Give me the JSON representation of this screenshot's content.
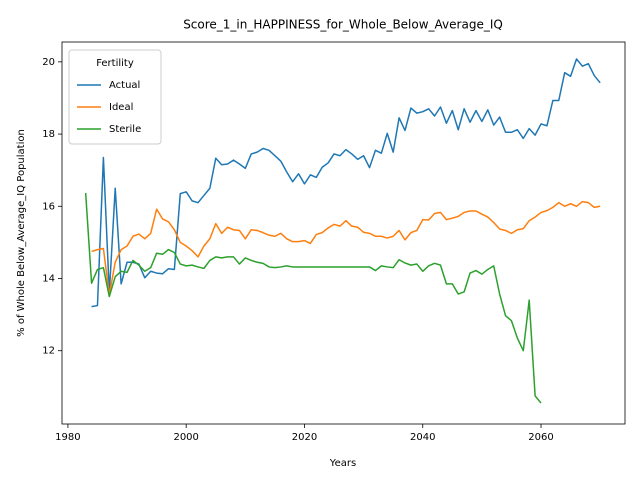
{
  "chart_data": {
    "type": "line",
    "title": "Score_1_in_HAPPINESS_for_Whole_Below_Average_IQ",
    "x_label": "Years",
    "y_label": "% of Whole Below_Average_IQ Population",
    "legend_title": "Fertility",
    "legend_position": "upper left",
    "grid": false,
    "x": [
      1983,
      1984,
      1985,
      1986,
      1987,
      1988,
      1989,
      1990,
      1991,
      1992,
      1993,
      1994,
      1995,
      1996,
      1997,
      1998,
      1999,
      2000,
      2001,
      2002,
      2003,
      2004,
      2005,
      2006,
      2007,
      2008,
      2009,
      2010,
      2011,
      2012,
      2013,
      2014,
      2015,
      2016,
      2017,
      2018,
      2019,
      2020,
      2021,
      2022,
      2023,
      2024,
      2025,
      2026,
      2027,
      2028,
      2029,
      2030,
      2031,
      2032,
      2033,
      2034,
      2035,
      2036,
      2037,
      2038,
      2039,
      2040,
      2041,
      2042,
      2043,
      2044,
      2045,
      2046,
      2047,
      2048,
      2049,
      2050,
      2051,
      2052,
      2053,
      2054,
      2055,
      2056,
      2057,
      2058,
      2059,
      2060,
      2061,
      2062,
      2063,
      2064,
      2065,
      2066,
      2067,
      2068,
      2069,
      2070
    ],
    "series": [
      {
        "name": "Actual",
        "color": "#1f77b4",
        "values": [
          null,
          13.22,
          13.25,
          17.35,
          13.6,
          16.5,
          13.85,
          14.45,
          14.45,
          14.4,
          14.02,
          14.2,
          14.15,
          14.13,
          14.27,
          14.25,
          16.35,
          16.4,
          16.15,
          16.1,
          16.3,
          16.5,
          17.33,
          17.15,
          17.17,
          17.28,
          17.17,
          17.05,
          17.45,
          17.5,
          17.6,
          17.55,
          17.4,
          17.25,
          16.95,
          16.68,
          16.9,
          16.62,
          16.87,
          16.8,
          17.08,
          17.2,
          17.45,
          17.4,
          17.57,
          17.45,
          17.3,
          17.4,
          17.07,
          17.55,
          17.47,
          18.02,
          17.5,
          18.45,
          18.1,
          18.72,
          18.58,
          18.62,
          18.7,
          18.5,
          18.75,
          18.3,
          18.65,
          18.12,
          18.7,
          18.33,
          18.65,
          18.35,
          18.67,
          18.25,
          18.47,
          18.05,
          18.05,
          18.12,
          17.88,
          18.15,
          17.97,
          18.28,
          18.23,
          18.93,
          18.93,
          19.7,
          19.6,
          20.08,
          19.88,
          19.95,
          19.62,
          19.42
        ]
      },
      {
        "name": "Ideal",
        "color": "#ff7f0e",
        "values": [
          null,
          14.75,
          14.8,
          14.83,
          13.55,
          14.45,
          14.8,
          14.9,
          15.17,
          15.23,
          15.1,
          15.25,
          15.92,
          15.65,
          15.57,
          15.35,
          15.0,
          14.9,
          14.77,
          14.6,
          14.9,
          15.1,
          15.52,
          15.25,
          15.42,
          15.35,
          15.33,
          15.1,
          15.35,
          15.33,
          15.27,
          15.2,
          15.17,
          15.25,
          15.1,
          15.02,
          15.02,
          15.05,
          14.97,
          15.22,
          15.27,
          15.4,
          15.5,
          15.45,
          15.6,
          15.45,
          15.42,
          15.28,
          15.25,
          15.17,
          15.17,
          15.12,
          15.17,
          15.33,
          15.07,
          15.27,
          15.33,
          15.63,
          15.62,
          15.8,
          15.83,
          15.63,
          15.67,
          15.72,
          15.83,
          15.87,
          15.87,
          15.78,
          15.7,
          15.55,
          15.37,
          15.33,
          15.25,
          15.35,
          15.38,
          15.6,
          15.7,
          15.83,
          15.88,
          15.97,
          16.1,
          16.0,
          16.07,
          16.0,
          16.13,
          16.1,
          15.97,
          16.0
        ]
      },
      {
        "name": "Sterile",
        "color": "#2ca02c",
        "values": [
          16.37,
          13.87,
          14.25,
          14.3,
          13.5,
          14.05,
          14.2,
          14.17,
          14.5,
          14.37,
          14.2,
          14.3,
          14.7,
          14.67,
          14.8,
          14.72,
          14.4,
          14.35,
          14.37,
          14.32,
          14.28,
          14.5,
          14.6,
          14.57,
          14.6,
          14.6,
          14.4,
          14.57,
          14.5,
          14.45,
          14.42,
          14.32,
          14.3,
          14.32,
          14.35,
          14.32,
          14.32,
          14.32,
          14.32,
          14.32,
          14.32,
          14.32,
          14.32,
          14.32,
          14.32,
          14.32,
          14.32,
          14.32,
          14.32,
          14.22,
          14.35,
          14.32,
          14.3,
          14.52,
          14.43,
          14.37,
          14.4,
          14.2,
          14.35,
          14.42,
          14.37,
          13.85,
          13.85,
          13.57,
          13.63,
          14.15,
          14.22,
          14.12,
          14.25,
          14.35,
          13.57,
          12.97,
          12.83,
          12.35,
          12.0,
          13.4,
          10.75,
          10.55,
          null,
          null,
          null,
          null,
          null,
          null,
          null,
          null,
          null,
          null
        ]
      }
    ],
    "xlim": [
      1979,
      2074.2
    ],
    "ylim": [
      9.97,
      20.55
    ],
    "xticks": [
      1980,
      2000,
      2020,
      2040,
      2060
    ],
    "yticks": [
      12,
      14,
      16,
      18,
      20
    ]
  }
}
